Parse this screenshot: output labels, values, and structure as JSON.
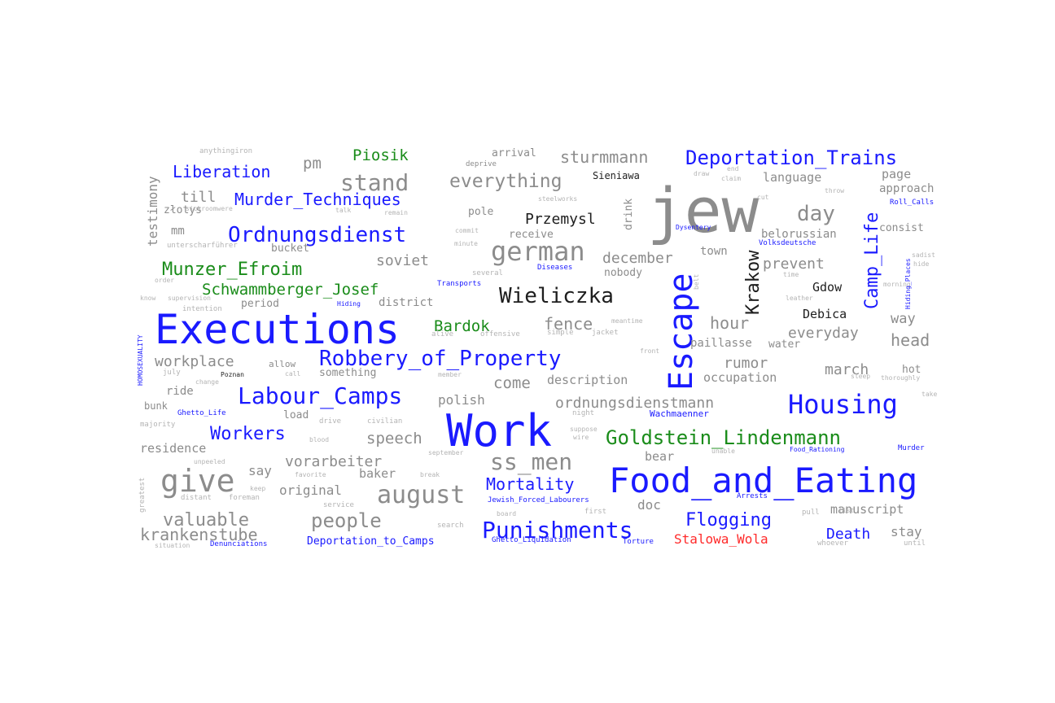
{
  "colors": {
    "blue": "#1a1aff",
    "green": "#1a8c1a",
    "gray": "#8c8c8c",
    "light": "#b4b4b4",
    "black": "#1e1e1e",
    "red": "#ff2a2a"
  },
  "words": [
    {
      "text": "jew",
      "color": "gray"
    },
    {
      "text": "Work",
      "color": "blue"
    },
    {
      "text": "Executions",
      "color": "blue"
    },
    {
      "text": "Food_and_Eating",
      "color": "blue"
    },
    {
      "text": "Escape",
      "color": "blue"
    },
    {
      "text": "Robbery_of_Property",
      "color": "blue"
    },
    {
      "text": "Labour_Camps",
      "color": "blue"
    },
    {
      "text": "Housing",
      "color": "blue"
    },
    {
      "text": "Punishments",
      "color": "blue"
    },
    {
      "text": "Deportation_Trains",
      "color": "blue"
    },
    {
      "text": "Ordnungsdienst",
      "color": "blue"
    },
    {
      "text": "Camp_Life",
      "color": "blue"
    },
    {
      "text": "Murder_Techniques",
      "color": "blue"
    },
    {
      "text": "Liberation",
      "color": "blue"
    },
    {
      "text": "Workers",
      "color": "blue"
    },
    {
      "text": "Mortality",
      "color": "blue"
    },
    {
      "text": "Flogging",
      "color": "blue"
    },
    {
      "text": "Death",
      "color": "blue"
    },
    {
      "text": "Deportation_to_Camps",
      "color": "blue"
    },
    {
      "text": "Goldstein_Lindenmann",
      "color": "green"
    },
    {
      "text": "Munzer_Efroim",
      "color": "green"
    },
    {
      "text": "Schwammberger_Josef",
      "color": "green"
    },
    {
      "text": "Piosik",
      "color": "green"
    },
    {
      "text": "Bardok",
      "color": "green"
    },
    {
      "text": "Stalowa_Wola",
      "color": "red"
    },
    {
      "text": "Wieliczka",
      "color": "black"
    },
    {
      "text": "Krakow",
      "color": "black"
    },
    {
      "text": "Przemysl",
      "color": "black"
    },
    {
      "text": "Gdow",
      "color": "black"
    },
    {
      "text": "Debica",
      "color": "black"
    },
    {
      "text": "Sieniawa",
      "color": "black"
    },
    {
      "text": "give",
      "color": "gray"
    },
    {
      "text": "german",
      "color": "gray"
    },
    {
      "text": "august",
      "color": "gray"
    },
    {
      "text": "ss_men",
      "color": "gray"
    },
    {
      "text": "people",
      "color": "gray"
    },
    {
      "text": "stand",
      "color": "gray"
    },
    {
      "text": "everything",
      "color": "gray"
    },
    {
      "text": "sturmmann",
      "color": "gray"
    },
    {
      "text": "day",
      "color": "gray"
    },
    {
      "text": "hour",
      "color": "gray"
    },
    {
      "text": "fence",
      "color": "gray"
    },
    {
      "text": "valuable",
      "color": "gray"
    },
    {
      "text": "krankenstube",
      "color": "gray"
    },
    {
      "text": "workplace",
      "color": "gray"
    },
    {
      "text": "soviet",
      "color": "gray"
    },
    {
      "text": "december",
      "color": "gray"
    },
    {
      "text": "prevent",
      "color": "gray"
    },
    {
      "text": "everyday",
      "color": "gray"
    },
    {
      "text": "head",
      "color": "gray"
    },
    {
      "text": "rumor",
      "color": "gray"
    },
    {
      "text": "march",
      "color": "gray"
    },
    {
      "text": "way",
      "color": "gray"
    },
    {
      "text": "ordnungsdienstmann",
      "color": "gray"
    },
    {
      "text": "speech",
      "color": "gray"
    },
    {
      "text": "vorarbeiter",
      "color": "gray"
    },
    {
      "text": "come",
      "color": "gray"
    },
    {
      "text": "description",
      "color": "gray"
    },
    {
      "text": "occupation",
      "color": "gray"
    },
    {
      "text": "polish",
      "color": "gray"
    },
    {
      "text": "residence",
      "color": "gray"
    },
    {
      "text": "say",
      "color": "gray"
    },
    {
      "text": "original",
      "color": "gray"
    },
    {
      "text": "baker",
      "color": "gray"
    },
    {
      "text": "bear",
      "color": "gray"
    },
    {
      "text": "doc",
      "color": "gray"
    },
    {
      "text": "manuscript",
      "color": "gray"
    },
    {
      "text": "stay",
      "color": "gray"
    },
    {
      "text": "pm",
      "color": "gray"
    },
    {
      "text": "till",
      "color": "gray"
    },
    {
      "text": "language",
      "color": "gray"
    },
    {
      "text": "page",
      "color": "gray"
    },
    {
      "text": "approach",
      "color": "gray"
    },
    {
      "text": "consist",
      "color": "gray"
    },
    {
      "text": "belorussian",
      "color": "gray"
    },
    {
      "text": "town",
      "color": "gray"
    },
    {
      "text": "nobody",
      "color": "gray"
    },
    {
      "text": "district",
      "color": "gray"
    },
    {
      "text": "period",
      "color": "gray"
    },
    {
      "text": "drink",
      "color": "gray"
    },
    {
      "text": "testimony",
      "color": "gray"
    },
    {
      "text": "złotys",
      "color": "gray"
    },
    {
      "text": "mm",
      "color": "gray"
    },
    {
      "text": "bucket",
      "color": "gray"
    },
    {
      "text": "ride",
      "color": "gray"
    },
    {
      "text": "bunk",
      "color": "gray"
    },
    {
      "text": "load",
      "color": "gray"
    },
    {
      "text": "something",
      "color": "gray"
    },
    {
      "text": "allow",
      "color": "gray"
    },
    {
      "text": "hot",
      "color": "gray"
    },
    {
      "text": "paillasse",
      "color": "gray"
    },
    {
      "text": "water",
      "color": "gray"
    },
    {
      "text": "receive",
      "color": "gray"
    },
    {
      "text": "pole",
      "color": "gray"
    },
    {
      "text": "arrival",
      "color": "gray"
    },
    {
      "text": "deprive",
      "color": "gray"
    },
    {
      "text": "anythingiron",
      "color": "light"
    },
    {
      "text": "sickroomwere",
      "color": "light"
    },
    {
      "text": "unterscharführer",
      "color": "light"
    },
    {
      "text": "order",
      "color": "light"
    },
    {
      "text": "know",
      "color": "light"
    },
    {
      "text": "supervision",
      "color": "light"
    },
    {
      "text": "intention",
      "color": "light"
    },
    {
      "text": "july",
      "color": "light"
    },
    {
      "text": "majority",
      "color": "light"
    },
    {
      "text": "unpeeled",
      "color": "light"
    },
    {
      "text": "greatest",
      "color": "light"
    },
    {
      "text": "distant",
      "color": "light"
    },
    {
      "text": "foreman",
      "color": "light"
    },
    {
      "text": "situation",
      "color": "light"
    },
    {
      "text": "keep",
      "color": "light"
    },
    {
      "text": "favorite",
      "color": "light"
    },
    {
      "text": "blood",
      "color": "light"
    },
    {
      "text": "drive",
      "color": "light"
    },
    {
      "text": "civilian",
      "color": "light"
    },
    {
      "text": "break",
      "color": "light"
    },
    {
      "text": "september",
      "color": "light"
    },
    {
      "text": "service",
      "color": "light"
    },
    {
      "text": "search",
      "color": "light"
    },
    {
      "text": "board",
      "color": "light"
    },
    {
      "text": "first",
      "color": "light"
    },
    {
      "text": "pull",
      "color": "light"
    },
    {
      "text": "whoever",
      "color": "light"
    },
    {
      "text": "until",
      "color": "light"
    },
    {
      "text": "remain",
      "color": "light"
    },
    {
      "text": "talk",
      "color": "light"
    },
    {
      "text": "commit",
      "color": "light"
    },
    {
      "text": "minute",
      "color": "light"
    },
    {
      "text": "several",
      "color": "light"
    },
    {
      "text": "meantime",
      "color": "light"
    },
    {
      "text": "simple",
      "color": "light"
    },
    {
      "text": "jacket",
      "color": "light"
    },
    {
      "text": "offensive",
      "color": "light"
    },
    {
      "text": "alive",
      "color": "light"
    },
    {
      "text": "front",
      "color": "light"
    },
    {
      "text": "belt",
      "color": "light"
    },
    {
      "text": "time",
      "color": "light"
    },
    {
      "text": "leather",
      "color": "light"
    },
    {
      "text": "morning",
      "color": "light"
    },
    {
      "text": "sadist",
      "color": "light"
    },
    {
      "text": "hide",
      "color": "light"
    },
    {
      "text": "sleep",
      "color": "light"
    },
    {
      "text": "thoroughly",
      "color": "light"
    },
    {
      "text": "take",
      "color": "light"
    },
    {
      "text": "list",
      "color": "light"
    },
    {
      "text": "unable",
      "color": "light"
    },
    {
      "text": "night",
      "color": "light"
    },
    {
      "text": "suppose",
      "color": "light"
    },
    {
      "text": "wire",
      "color": "light"
    },
    {
      "text": "call",
      "color": "light"
    },
    {
      "text": "change",
      "color": "light"
    },
    {
      "text": "member",
      "color": "light"
    },
    {
      "text": "steelworks",
      "color": "light"
    },
    {
      "text": "claim",
      "color": "light"
    },
    {
      "text": "cut",
      "color": "light"
    },
    {
      "text": "draw",
      "color": "light"
    },
    {
      "text": "end",
      "color": "light"
    },
    {
      "text": "throw",
      "color": "light"
    },
    {
      "text": "Poznan",
      "color": "black"
    },
    {
      "text": "Roll_Calls",
      "color": "blue"
    },
    {
      "text": "Dysentery",
      "color": "blue"
    },
    {
      "text": "Volksdeutsche",
      "color": "blue"
    },
    {
      "text": "Diseases",
      "color": "blue"
    },
    {
      "text": "Transports",
      "color": "blue"
    },
    {
      "text": "Hiding",
      "color": "blue"
    },
    {
      "text": "Hiding_Places",
      "color": "blue"
    },
    {
      "text": "Ghetto_Life",
      "color": "blue"
    },
    {
      "text": "Wachmaenner",
      "color": "blue"
    },
    {
      "text": "Food_Rationing",
      "color": "blue"
    },
    {
      "text": "Murder",
      "color": "blue"
    },
    {
      "text": "Jewish_Forced_Labourers",
      "color": "blue"
    },
    {
      "text": "Arrests",
      "color": "blue"
    },
    {
      "text": "Denunciations",
      "color": "blue"
    },
    {
      "text": "Ghetto_Liquidation",
      "color": "blue"
    },
    {
      "text": "Torture",
      "color": "blue"
    },
    {
      "text": "HOMOSEXUALITY",
      "color": "blue"
    }
  ]
}
